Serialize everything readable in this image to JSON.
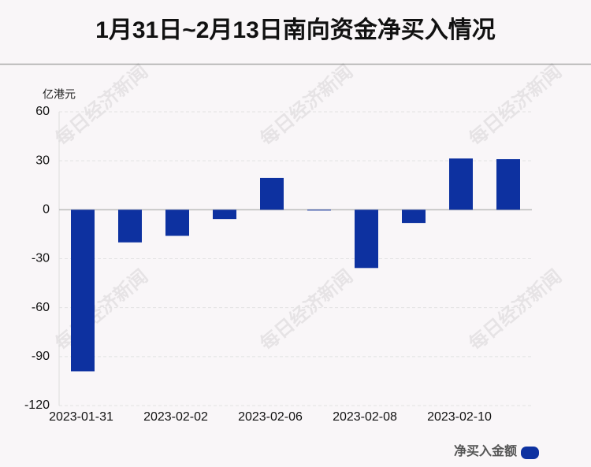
{
  "chart_data": {
    "type": "bar",
    "title": "1月31日~2月13日南向资金净买入情况",
    "y_unit": "亿港元",
    "watermark": "每日经济新闻",
    "categories": [
      "2023-01-31",
      null,
      "2023-02-02",
      null,
      "2023-02-06",
      null,
      "2023-02-08",
      null,
      "2023-02-10",
      null
    ],
    "series": [
      {
        "name": "净买入金额",
        "color": "#0d31a0",
        "values": [
          -99,
          -20,
          -16,
          -5.7,
          19.5,
          -0.4,
          -35.7,
          -8.1,
          31.4,
          31
        ]
      }
    ],
    "ylim": [
      -120,
      60
    ],
    "yticks": [
      -120,
      -90,
      -60,
      -30,
      0,
      30,
      60
    ],
    "grid": true,
    "legend": "bottom-right"
  }
}
